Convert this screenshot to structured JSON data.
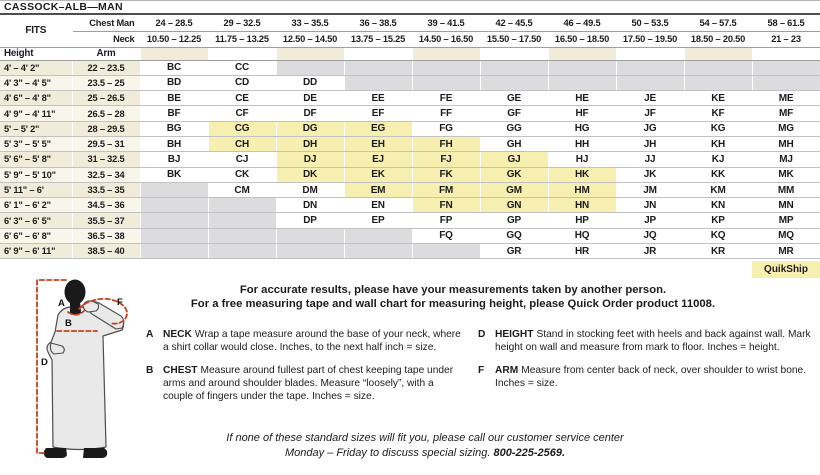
{
  "title": "CASSOCK–ALB—MAN",
  "colors": {
    "column_stripe_cream": "#f1ecd9",
    "fits_cell_tan": "#ddd7c3",
    "quikship_yellow": "#f6efb0",
    "empty_cell_gray": "#dcdcde",
    "diagram_dash_red": "#c8401f"
  },
  "size_table": {
    "fits_label": "FITS",
    "chest_row_label": "Chest Man",
    "neck_row_label": "Neck",
    "height_col_label": "Height",
    "arm_col_label": "Arm",
    "chest_ranges": [
      "24 – 28.5",
      "29 – 32.5",
      "33 – 35.5",
      "36 – 38.5",
      "39 – 41.5",
      "42 – 45.5",
      "46 – 49.5",
      "50 – 53.5",
      "54 – 57.5",
      "58 – 61.5"
    ],
    "neck_ranges": [
      "10.50 – 12.25",
      "11.75 – 13.25",
      "12.50 – 14.50",
      "13.75 – 15.25",
      "14.50 – 16.50",
      "15.50 – 17.50",
      "16.50 – 18.50",
      "17.50 – 19.50",
      "18.50 – 20.50",
      "21 – 23"
    ],
    "rows": [
      {
        "height": "4' – 4' 2\"",
        "arm": "22 – 23.5",
        "sizes": [
          "BC",
          "CC",
          "",
          "",
          "",
          "",
          "",
          "",
          "",
          ""
        ]
      },
      {
        "height": "4' 3\" – 4' 5\"",
        "arm": "23.5 – 25",
        "sizes": [
          "BD",
          "CD",
          "DD",
          "",
          "",
          "",
          "",
          "",
          "",
          ""
        ]
      },
      {
        "height": "4' 6\" – 4' 8\"",
        "arm": "25 – 26.5",
        "sizes": [
          "BE",
          "CE",
          "DE",
          "EE",
          "FE",
          "GE",
          "HE",
          "JE",
          "KE",
          "ME"
        ]
      },
      {
        "height": "4' 9\" – 4' 11\"",
        "arm": "26.5 – 28",
        "sizes": [
          "BF",
          "CF",
          "DF",
          "EF",
          "FF",
          "GF",
          "HF",
          "JF",
          "KF",
          "MF"
        ]
      },
      {
        "height": "5' – 5' 2\"",
        "arm": "28 – 29.5",
        "sizes": [
          "BG",
          "CG",
          "DG",
          "EG",
          "FG",
          "GG",
          "HG",
          "JG",
          "KG",
          "MG"
        ]
      },
      {
        "height": "5' 3\" – 5' 5\"",
        "arm": "29.5 – 31",
        "sizes": [
          "BH",
          "CH",
          "DH",
          "EH",
          "FH",
          "GH",
          "HH",
          "JH",
          "KH",
          "MH"
        ]
      },
      {
        "height": "5' 6\" – 5' 8\"",
        "arm": "31 – 32.5",
        "sizes": [
          "BJ",
          "CJ",
          "DJ",
          "EJ",
          "FJ",
          "GJ",
          "HJ",
          "JJ",
          "KJ",
          "MJ"
        ]
      },
      {
        "height": "5' 9\" – 5' 10\"",
        "arm": "32.5 – 34",
        "sizes": [
          "BK",
          "CK",
          "DK",
          "EK",
          "FK",
          "GK",
          "HK",
          "JK",
          "KK",
          "MK"
        ]
      },
      {
        "height": "5' 11\" – 6'",
        "arm": "33.5 – 35",
        "sizes": [
          "",
          "CM",
          "DM",
          "EM",
          "FM",
          "GM",
          "HM",
          "JM",
          "KM",
          "MM"
        ]
      },
      {
        "height": "6' 1\" – 6' 2\"",
        "arm": "34.5 – 36",
        "sizes": [
          "",
          "",
          "DN",
          "EN",
          "FN",
          "GN",
          "HN",
          "JN",
          "KN",
          "MN"
        ]
      },
      {
        "height": "6' 3\" – 6' 5\"",
        "arm": "35.5 – 37",
        "sizes": [
          "",
          "",
          "DP",
          "EP",
          "FP",
          "GP",
          "HP",
          "JP",
          "KP",
          "MP"
        ]
      },
      {
        "height": "6' 6\" – 6' 8\"",
        "arm": "36.5 – 38",
        "sizes": [
          "",
          "",
          "",
          "",
          "FQ",
          "GQ",
          "HQ",
          "JQ",
          "KQ",
          "MQ"
        ]
      },
      {
        "height": "6' 9\" – 6' 11\"",
        "arm": "38.5 – 40",
        "sizes": [
          "",
          "",
          "",
          "",
          "",
          "GR",
          "HR",
          "JR",
          "KR",
          "MR"
        ]
      }
    ],
    "quikship_label": "QuikShip",
    "quikship_sizes": [
      "CG",
      "CH",
      "DG",
      "DH",
      "DJ",
      "DK",
      "EG",
      "EH",
      "EJ",
      "EK",
      "EM",
      "FH",
      "FJ",
      "FK",
      "FM",
      "FN",
      "GJ",
      "GK",
      "GM",
      "GN",
      "HK",
      "HM",
      "HN"
    ]
  },
  "notes": {
    "line1": "For accurate results, please have your measurements taken by another person.",
    "line2": "For a free measuring tape and wall chart for measuring height, please Quick Order product 11008."
  },
  "instructions": [
    {
      "key": "A",
      "name": "NECK",
      "text": "Wrap a tape measure around the base of your neck, where a shirt collar would close. Inches, to the next half inch = size."
    },
    {
      "key": "B",
      "name": "CHEST",
      "text": "Measure around fullest part of chest keeping tape under arms and around shoulder blades. Measure “loosely”, with a couple of fingers under the tape. Inches = size."
    },
    {
      "key": "D",
      "name": "HEIGHT",
      "text": "Stand in stocking feet with heels and back against wall. Mark height on wall and measure from mark to floor. Inches = height."
    },
    {
      "key": "F",
      "name": "ARM",
      "text": "Measure from center back of neck, over shoulder to wrist bone. Inches = size."
    }
  ],
  "footer": {
    "line1": "If none of these standard sizes will fit you, please call our customer service center",
    "line2_prefix": "Monday – Friday to discuss special sizing. ",
    "phone": "800-225-2569."
  },
  "figure": {
    "labels": [
      "A",
      "B",
      "D",
      "F"
    ]
  }
}
